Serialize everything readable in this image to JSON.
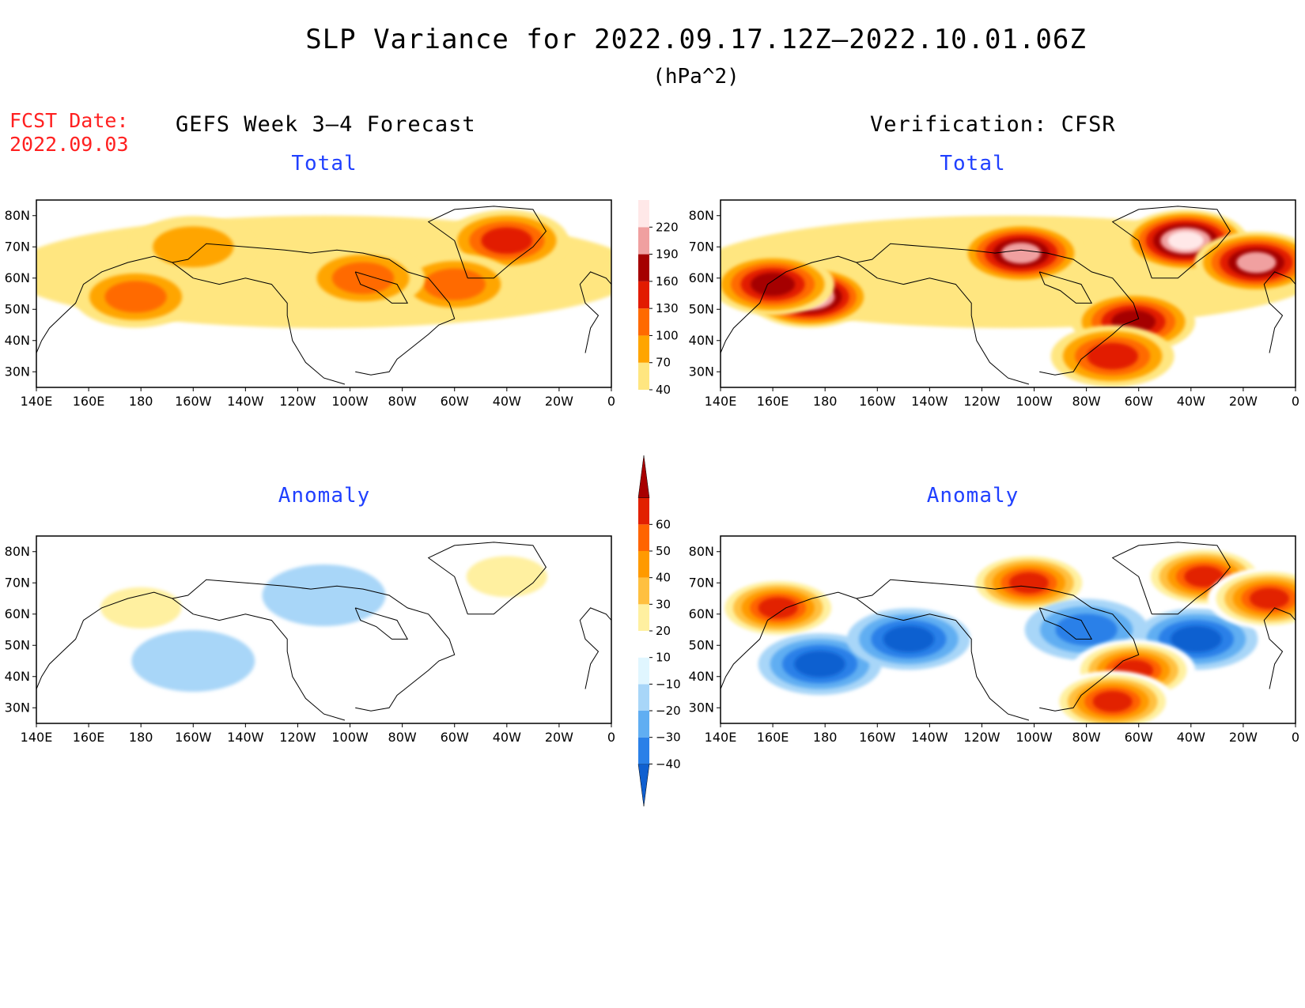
{
  "title": "SLP Variance for 2022.09.17.12Z–2022.10.01.06Z",
  "units": "(hPa^2)",
  "fcst_label": "FCST Date:",
  "fcst_date": "2022.09.03",
  "left_column_title": "GEFS Week 3–4 Forecast",
  "right_column_title": "Verification: CFSR",
  "panel_titles": {
    "forecast_total": "Total",
    "verification_total": "Total",
    "forecast_anomaly": "Anomaly",
    "verification_anomaly": "Anomaly"
  },
  "colors": {
    "title_red": "#ff2020",
    "panel_title_blue": "#2040ff"
  },
  "chart_data": [
    {
      "type": "heatmap",
      "panel": "GEFS Week 3-4 Forecast",
      "title": "Total",
      "x_ticks": [
        "140E",
        "160E",
        "180",
        "160W",
        "140W",
        "120W",
        "100W",
        "80W",
        "60W",
        "40W",
        "20W",
        "0"
      ],
      "y_ticks": [
        "30N",
        "40N",
        "50N",
        "60N",
        "70N",
        "80N"
      ],
      "xlim_deg_east": [
        140,
        360
      ],
      "ylim_deg_north": [
        25,
        85
      ],
      "colorbar": {
        "levels": [
          40,
          70,
          100,
          130,
          160,
          190,
          220
        ],
        "colors": [
          "#ffe680",
          "#ffa500",
          "#ff6a00",
          "#e21b00",
          "#a50000",
          "#f0a0a0",
          "#ffe8e8"
        ]
      },
      "features": [
        {
          "lon": 178,
          "lat": 54,
          "value": 100
        },
        {
          "lon": 320,
          "lat": 72,
          "value": 130
        },
        {
          "lon": 300,
          "lat": 58,
          "value": 100
        },
        {
          "lon": 265,
          "lat": 60,
          "value": 100
        },
        {
          "lon": 200,
          "lat": 70,
          "value": 70
        }
      ]
    },
    {
      "type": "heatmap",
      "panel": "Verification: CFSR",
      "title": "Total",
      "x_ticks": [
        "140E",
        "160E",
        "180",
        "160W",
        "140W",
        "120W",
        "100W",
        "80W",
        "60W",
        "40W",
        "20W",
        "0"
      ],
      "y_ticks": [
        "30N",
        "40N",
        "50N",
        "60N",
        "70N",
        "80N"
      ],
      "xlim_deg_east": [
        140,
        360
      ],
      "ylim_deg_north": [
        25,
        85
      ],
      "colorbar": {
        "levels": [
          40,
          70,
          100,
          130,
          160,
          190,
          220
        ],
        "colors": [
          "#ffe680",
          "#ffa500",
          "#ff6a00",
          "#e21b00",
          "#a50000",
          "#f0a0a0",
          "#ffe8e8"
        ]
      },
      "features": [
        {
          "lon": 174,
          "lat": 54,
          "value": 220
        },
        {
          "lon": 160,
          "lat": 58,
          "value": 160
        },
        {
          "lon": 255,
          "lat": 68,
          "value": 190
        },
        {
          "lon": 318,
          "lat": 72,
          "value": 220
        },
        {
          "lon": 345,
          "lat": 65,
          "value": 190
        },
        {
          "lon": 298,
          "lat": 46,
          "value": 160
        },
        {
          "lon": 290,
          "lat": 35,
          "value": 130
        }
      ]
    },
    {
      "type": "heatmap",
      "panel": "GEFS Week 3-4 Forecast",
      "title": "Anomaly",
      "x_ticks": [
        "140E",
        "160E",
        "180",
        "160W",
        "140W",
        "120W",
        "100W",
        "80W",
        "60W",
        "40W",
        "20W",
        "0"
      ],
      "y_ticks": [
        "30N",
        "40N",
        "50N",
        "60N",
        "70N",
        "80N"
      ],
      "xlim_deg_east": [
        140,
        360
      ],
      "ylim_deg_north": [
        25,
        85
      ],
      "colorbar": {
        "levels": [
          -40,
          -30,
          -20,
          -10,
          10,
          20,
          30,
          40,
          50,
          60
        ],
        "colors": [
          "#1060d0",
          "#2a80e8",
          "#60aef2",
          "#a8d6f8",
          "#e0f6ff",
          "#ffffff",
          "#fff0a0",
          "#ffc040",
          "#ff9a00",
          "#ff6400",
          "#e22000",
          "#a80000"
        ]
      },
      "features": [
        {
          "lon": 180,
          "lat": 62,
          "value": 20
        },
        {
          "lon": 200,
          "lat": 45,
          "value": -10
        },
        {
          "lon": 320,
          "lat": 72,
          "value": 20
        },
        {
          "lon": 250,
          "lat": 66,
          "value": -10
        },
        {
          "lon": 330,
          "lat": 55,
          "value": 10
        }
      ]
    },
    {
      "type": "heatmap",
      "panel": "Verification: CFSR",
      "title": "Anomaly",
      "x_ticks": [
        "140E",
        "160E",
        "180",
        "160W",
        "140W",
        "120W",
        "100W",
        "80W",
        "60W",
        "40W",
        "20W",
        "0"
      ],
      "y_ticks": [
        "30N",
        "40N",
        "50N",
        "60N",
        "70N",
        "80N"
      ],
      "xlim_deg_east": [
        140,
        360
      ],
      "ylim_deg_north": [
        25,
        85
      ],
      "colorbar": {
        "levels": [
          -40,
          -30,
          -20,
          -10,
          10,
          20,
          30,
          40,
          50,
          60
        ],
        "colors": [
          "#1060d0",
          "#2a80e8",
          "#60aef2",
          "#a8d6f8",
          "#e0f6ff",
          "#ffffff",
          "#fff0a0",
          "#ffc040",
          "#ff9a00",
          "#ff6400",
          "#e22000",
          "#a80000"
        ]
      },
      "features": [
        {
          "lon": 162,
          "lat": 62,
          "value": 60
        },
        {
          "lon": 178,
          "lat": 44,
          "value": -40
        },
        {
          "lon": 212,
          "lat": 52,
          "value": -40
        },
        {
          "lon": 258,
          "lat": 70,
          "value": 60
        },
        {
          "lon": 280,
          "lat": 55,
          "value": -30
        },
        {
          "lon": 322,
          "lat": 52,
          "value": -40
        },
        {
          "lon": 325,
          "lat": 72,
          "value": 60
        },
        {
          "lon": 350,
          "lat": 65,
          "value": 60
        },
        {
          "lon": 298,
          "lat": 42,
          "value": 60
        },
        {
          "lon": 290,
          "lat": 32,
          "value": 60
        }
      ]
    }
  ]
}
